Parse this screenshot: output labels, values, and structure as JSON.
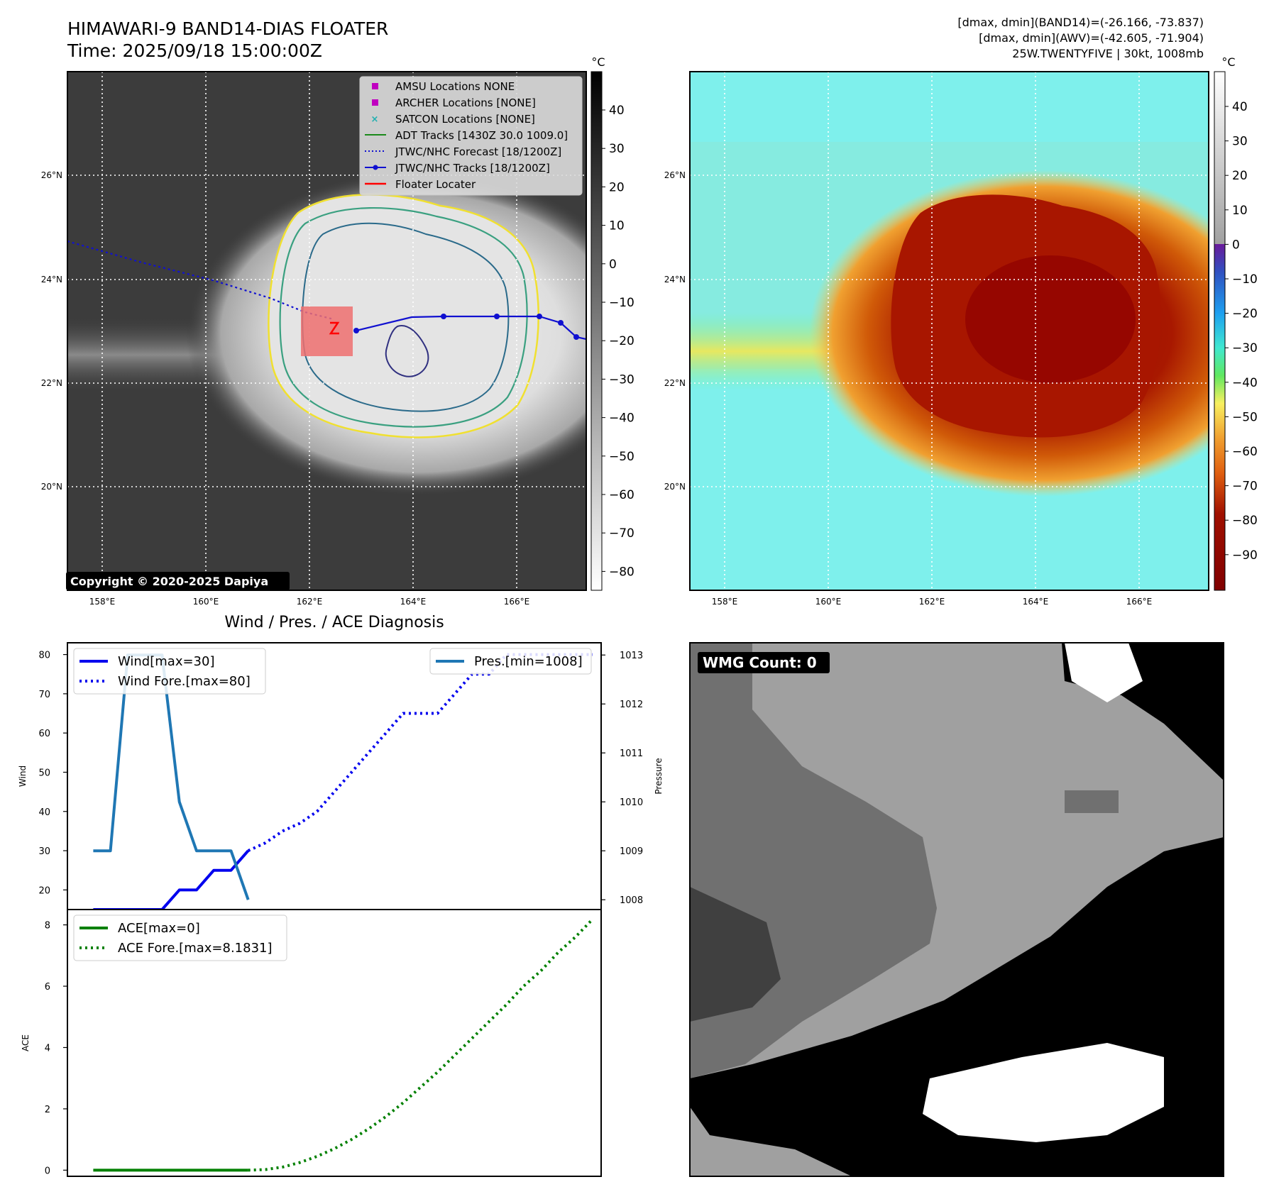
{
  "header": {
    "title": "HIMAWARI-9 BAND14-DIAS FLOATER",
    "time": "Time: 2025/09/18 15:00:00Z",
    "info_line1": "[dmax, dmin](BAND14)=(-26.166, -73.837)",
    "info_line2": "[dmax, dmin](AWV)=(-42.605, -71.904)",
    "info_line3": "25W.TWENTYFIVE | 30kt, 1008mb"
  },
  "map_axes": {
    "lon_labels": [
      "158°E",
      "160°E",
      "162°E",
      "164°E",
      "166°E"
    ],
    "lat_labels": [
      "26°N",
      "24°N",
      "22°N",
      "20°N"
    ]
  },
  "colorbar_left": {
    "unit": "°C",
    "ticks": [
      "40",
      "30",
      "20",
      "10",
      "0",
      "−10",
      "−20",
      "−30",
      "−40",
      "−50",
      "−60",
      "−70",
      "−80"
    ]
  },
  "colorbar_right": {
    "unit": "°C",
    "ticks": [
      "40",
      "30",
      "20",
      "10",
      "0",
      "−10",
      "−20",
      "−30",
      "−40",
      "−50",
      "−60",
      "−70",
      "−80",
      "−90"
    ]
  },
  "legend_map": {
    "items": [
      {
        "label": "AMSU Locations NONE",
        "color": "#c000c0"
      },
      {
        "label": "ARCHER Locations [NONE]",
        "color": "#c000c0"
      },
      {
        "label": "SATCON Locations [NONE]",
        "color": "#20b0b0"
      },
      {
        "label": "ADT Tracks [1430Z 30.0 1009.0]",
        "color": "#1a8a1a"
      },
      {
        "label": "JTWC/NHC Forecast [18/1200Z]",
        "color": "#1010d0"
      },
      {
        "label": "JTWC/NHC Tracks [18/1200Z]",
        "color": "#1010d0"
      },
      {
        "label": "Floater Locater",
        "color": "#ff0000"
      }
    ]
  },
  "copyright": "Copyright © 2020-2025 Dapiya",
  "wmg_label": "WMG Count: 0",
  "chart_data": [
    {
      "type": "line",
      "title": "Wind / Pres. / ACE Diagnosis",
      "ylabel": "Wind",
      "ylabel_right": "Pressure",
      "ylim": [
        15,
        83
      ],
      "ylim_right": [
        1007.8,
        1013.25
      ],
      "yticks": [
        20,
        30,
        40,
        50,
        60,
        70,
        80
      ],
      "yticks_right": [
        1008,
        1009,
        1010,
        1011,
        1012,
        1013
      ],
      "legend_left": [
        "Wind[max=30]",
        "Wind Fore.[max=80]"
      ],
      "legend_right": [
        "Pres.[min=1008]"
      ],
      "series": [
        {
          "name": "Wind[max=30]",
          "color": "#0000ee",
          "style": "solid",
          "x": [
            0,
            1,
            2,
            3,
            4,
            5,
            6,
            7,
            8,
            9
          ],
          "values": [
            15,
            15,
            15,
            15,
            15,
            20,
            20,
            25,
            25,
            30
          ]
        },
        {
          "name": "Wind Fore.[max=80]",
          "color": "#0000ee",
          "style": "dotted",
          "x": [
            9,
            10,
            11,
            12,
            13,
            14,
            15,
            16,
            17,
            18,
            19,
            20,
            21,
            22,
            23,
            24,
            25,
            26,
            27,
            28,
            29
          ],
          "values": [
            30,
            32,
            35,
            37,
            40,
            45,
            50,
            55,
            60,
            65,
            65,
            65,
            70,
            75,
            75,
            80,
            80,
            80,
            80,
            80,
            80
          ]
        },
        {
          "name": "Pres.[min=1008]",
          "color": "#1f77b4",
          "style": "solid",
          "axis": "right",
          "x": [
            0,
            1,
            2,
            3,
            4,
            5,
            6,
            7,
            8,
            9
          ],
          "values": [
            1009,
            1009,
            1013,
            1013,
            1013,
            1010,
            1009,
            1009,
            1009,
            1008
          ]
        }
      ]
    },
    {
      "type": "line",
      "ylabel": "ACE",
      "ylim": [
        -0.2,
        8.5
      ],
      "yticks": [
        0,
        2,
        4,
        6,
        8
      ],
      "legend": [
        "ACE[max=0]",
        "ACE Fore.[max=8.1831]"
      ],
      "series": [
        {
          "name": "ACE[max=0]",
          "color": "#008000",
          "style": "solid",
          "x": [
            0,
            1,
            2,
            3,
            4,
            5,
            6,
            7,
            8,
            9
          ],
          "values": [
            0,
            0,
            0,
            0,
            0,
            0,
            0,
            0,
            0,
            0
          ]
        },
        {
          "name": "ACE Fore.[max=8.1831]",
          "color": "#008000",
          "style": "dotted",
          "x": [
            9,
            10,
            11,
            12,
            13,
            14,
            15,
            16,
            17,
            18,
            19,
            20,
            21,
            22,
            23,
            24,
            25,
            26,
            27,
            28,
            29
          ],
          "values": [
            0,
            0.02,
            0.1,
            0.25,
            0.45,
            0.7,
            1.0,
            1.35,
            1.75,
            2.2,
            2.7,
            3.2,
            3.75,
            4.3,
            4.85,
            5.4,
            6.0,
            6.5,
            7.1,
            7.6,
            8.1831
          ]
        }
      ]
    }
  ]
}
